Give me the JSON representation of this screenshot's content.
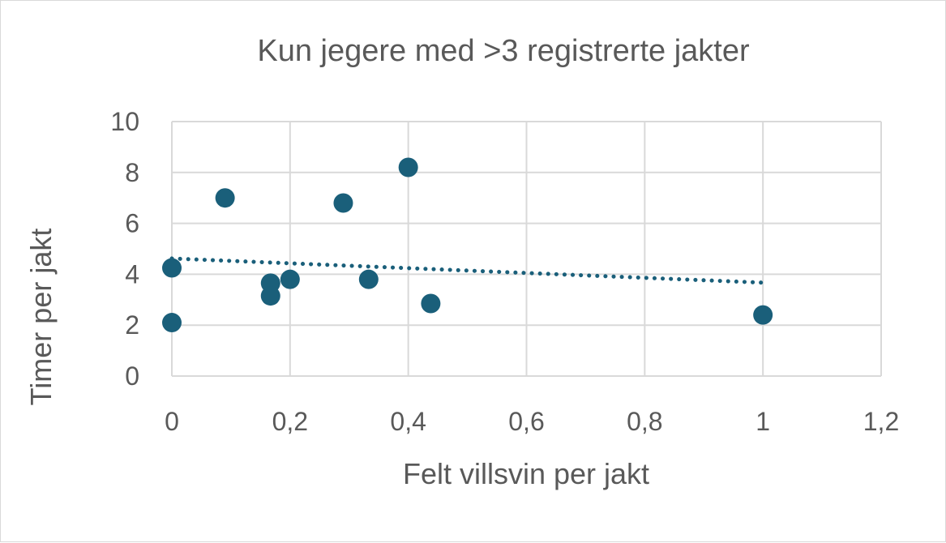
{
  "chart_data": {
    "type": "scatter",
    "title": "Kun jegere med >3 registrerte jakter",
    "xlabel": "Felt villsvin per jakt",
    "ylabel": "Timer per jakt",
    "xlim": [
      0,
      1.2
    ],
    "ylim": [
      0,
      10
    ],
    "x_ticks": [
      "0",
      "0,2",
      "0,4",
      "0,6",
      "0,8",
      "1",
      "1,2"
    ],
    "y_ticks": [
      "0",
      "2",
      "4",
      "6",
      "8",
      "10"
    ],
    "grid": true,
    "legend": "none",
    "marker_color": "#1a5f7a",
    "trendline": {
      "type": "linear",
      "dotted": true,
      "x": [
        0,
        1
      ],
      "y": [
        4.62,
        3.67
      ]
    },
    "series": [
      {
        "points": [
          {
            "x": 0,
            "y": 4.25
          },
          {
            "x": 0,
            "y": 2.1
          },
          {
            "x": 0.09,
            "y": 7.0
          },
          {
            "x": 0.167,
            "y": 3.65
          },
          {
            "x": 0.167,
            "y": 3.15
          },
          {
            "x": 0.2,
            "y": 3.8
          },
          {
            "x": 0.29,
            "y": 6.8
          },
          {
            "x": 0.333,
            "y": 3.8
          },
          {
            "x": 0.4,
            "y": 8.2
          },
          {
            "x": 0.438,
            "y": 2.85
          },
          {
            "x": 1.0,
            "y": 2.4
          }
        ]
      }
    ]
  }
}
